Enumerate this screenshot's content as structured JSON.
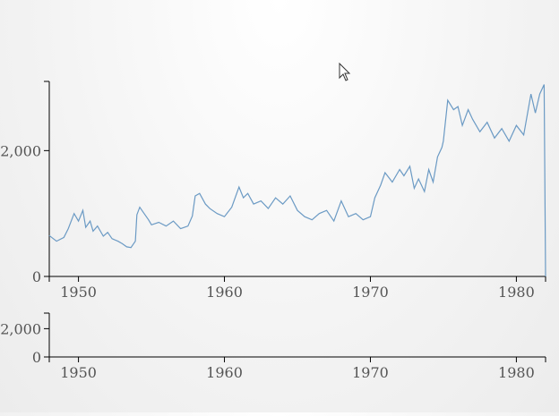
{
  "chart_data": [
    {
      "type": "line",
      "title": "",
      "xlabel": "",
      "ylabel": "",
      "xlim": [
        1948,
        1982
      ],
      "ylim": [
        0,
        3100
      ],
      "x_ticks": [
        1950,
        1960,
        1970,
        1980
      ],
      "x_tick_labels": [
        "1950",
        "1960",
        "1970",
        "1980"
      ],
      "y_ticks": [
        0,
        2000
      ],
      "y_tick_labels": [
        "0",
        "2,000"
      ],
      "grid": false,
      "series_color": "#6b9ac4",
      "x": [
        1948.0,
        1948.5,
        1949.0,
        1949.3,
        1949.7,
        1950.0,
        1950.3,
        1950.5,
        1950.8,
        1951.0,
        1951.3,
        1951.7,
        1952.0,
        1952.3,
        1952.7,
        1953.0,
        1953.3,
        1953.6,
        1953.9,
        1954.0,
        1954.2,
        1954.5,
        1954.8,
        1955.0,
        1955.5,
        1956.0,
        1956.5,
        1957.0,
        1957.5,
        1957.8,
        1958.0,
        1958.3,
        1958.7,
        1959.0,
        1959.5,
        1960.0,
        1960.5,
        1961.0,
        1961.3,
        1961.6,
        1962.0,
        1962.5,
        1963.0,
        1963.5,
        1964.0,
        1964.5,
        1965.0,
        1965.5,
        1966.0,
        1966.5,
        1967.0,
        1967.5,
        1968.0,
        1968.5,
        1969.0,
        1969.5,
        1970.0,
        1970.3,
        1970.7,
        1971.0,
        1971.5,
        1972.0,
        1972.3,
        1972.7,
        1973.0,
        1973.3,
        1973.7,
        1974.0,
        1974.3,
        1974.6,
        1974.9,
        1975.0,
        1975.3,
        1975.7,
        1976.0,
        1976.3,
        1976.7,
        1977.0,
        1977.5,
        1978.0,
        1978.5,
        1979.0,
        1979.5,
        1980.0,
        1980.5,
        1981.0,
        1981.3,
        1981.6,
        1981.9,
        1982.0
      ],
      "values": [
        650,
        560,
        620,
        760,
        1000,
        880,
        1050,
        780,
        880,
        720,
        800,
        640,
        700,
        600,
        560,
        520,
        470,
        460,
        560,
        980,
        1100,
        1000,
        900,
        820,
        860,
        800,
        880,
        760,
        800,
        960,
        1280,
        1320,
        1150,
        1080,
        1000,
        950,
        1100,
        1420,
        1250,
        1320,
        1150,
        1200,
        1080,
        1250,
        1150,
        1280,
        1050,
        950,
        900,
        1000,
        1050,
        880,
        1200,
        950,
        1000,
        900,
        950,
        1250,
        1450,
        1650,
        1500,
        1700,
        1600,
        1750,
        1400,
        1550,
        1350,
        1700,
        1500,
        1900,
        2050,
        2150,
        2800,
        2650,
        2700,
        2400,
        2650,
        2500,
        2300,
        2450,
        2200,
        2350,
        2150,
        2400,
        2250,
        2900,
        2600,
        2900,
        3050,
        0
      ]
    },
    {
      "type": "line",
      "title": "",
      "xlabel": "",
      "ylabel": "",
      "xlim": [
        1948,
        1982
      ],
      "ylim": [
        0,
        3100
      ],
      "x_ticks": [
        1950,
        1960,
        1970,
        1980
      ],
      "x_tick_labels": [
        "1950",
        "1960",
        "1970",
        "1980"
      ],
      "y_ticks": [
        0,
        2000
      ],
      "y_tick_labels": [
        "0",
        "2,000"
      ],
      "grid": false,
      "x": [],
      "values": []
    }
  ]
}
